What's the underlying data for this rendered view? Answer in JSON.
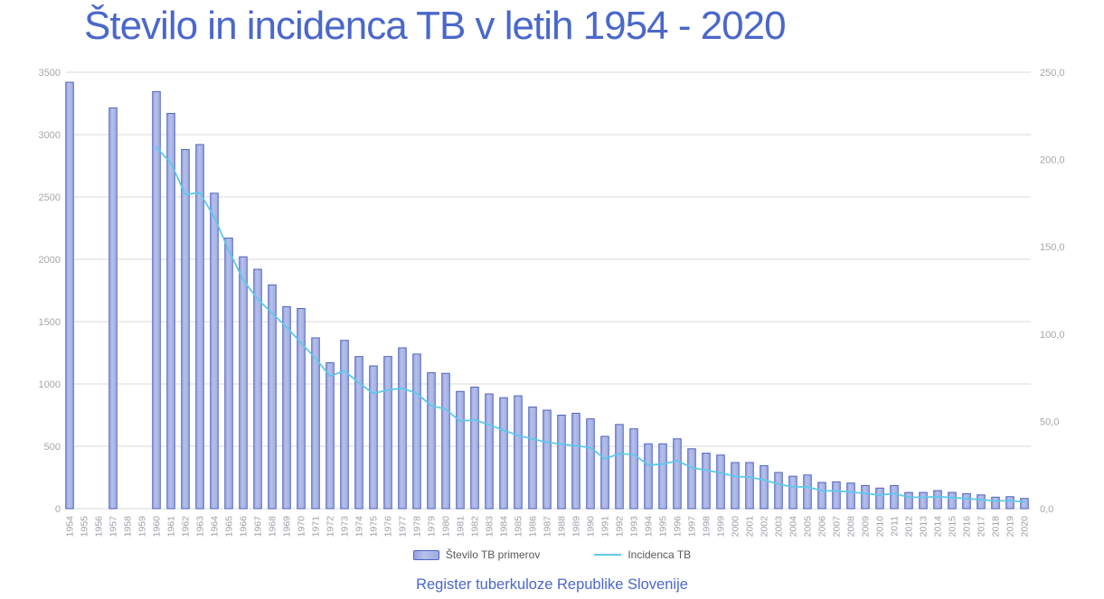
{
  "title": "Število in incidenca TB v letih 1954 - 2020",
  "caption": "Register tuberkuloze Republike Slovenije",
  "legend": {
    "bars": "Število TB primerov",
    "line": "Incidenca TB"
  },
  "colors": {
    "title": "#4A67CB",
    "caption": "#4A67CB",
    "bar_gradient": [
      "#97A4DD",
      "#B6C0EB",
      "#9FABE0"
    ],
    "bar_stroke": "#5063BE",
    "line": "#5EC9E9",
    "grid": "#D9D9D9",
    "axis_text": "#A6A6A6",
    "year_text": "#9DA1A8",
    "legend_text": "#595959"
  },
  "chart_data": {
    "type": "bar",
    "subtype": "combo-bar-line",
    "title": "Število in incidenca TB v letih 1954 - 2020",
    "xlabel": "",
    "ylabel_left": "",
    "ylabel_right": "",
    "grid": "horizontal",
    "legend_position": "bottom",
    "x": [
      1954,
      1955,
      1956,
      1957,
      1958,
      1959,
      1960,
      1961,
      1962,
      1963,
      1964,
      1965,
      1966,
      1967,
      1968,
      1969,
      1970,
      1971,
      1972,
      1973,
      1974,
      1975,
      1976,
      1977,
      1978,
      1979,
      1980,
      1981,
      1982,
      1983,
      1984,
      1985,
      1986,
      1987,
      1988,
      1989,
      1990,
      1991,
      1992,
      1993,
      1994,
      1995,
      1996,
      1997,
      1998,
      1999,
      2000,
      2001,
      2002,
      2003,
      2004,
      2005,
      2006,
      2007,
      2008,
      2009,
      2010,
      2011,
      2012,
      2013,
      2014,
      2015,
      2016,
      2017,
      2018,
      2019,
      2020
    ],
    "series": [
      {
        "name": "Število TB primerov",
        "type": "bar",
        "axis": "left",
        "values": [
          3420,
          null,
          null,
          3215,
          null,
          null,
          3345,
          3170,
          2880,
          2920,
          2530,
          2170,
          2020,
          1920,
          1795,
          1620,
          1605,
          1370,
          1170,
          1350,
          1220,
          1145,
          1220,
          1290,
          1240,
          1090,
          1085,
          940,
          975,
          920,
          890,
          905,
          815,
          790,
          750,
          765,
          720,
          580,
          675,
          640,
          520,
          520,
          560,
          480,
          445,
          430,
          370,
          370,
          345,
          290,
          260,
          270,
          210,
          215,
          205,
          185,
          165,
          185,
          130,
          130,
          145,
          130,
          120,
          110,
          92,
          96,
          82
        ]
      },
      {
        "name": "Incidenca TB",
        "type": "line",
        "axis": "right",
        "values": [
          null,
          null,
          null,
          null,
          null,
          null,
          207,
          198,
          180,
          181,
          167,
          148,
          131,
          120,
          112,
          104,
          95,
          86,
          76,
          79,
          72,
          66,
          68,
          69,
          66,
          59,
          57,
          50,
          51,
          48,
          45,
          42,
          40,
          38,
          37,
          36,
          35,
          28.5,
          31.5,
          31,
          25,
          25.5,
          27.5,
          23.5,
          22,
          20.5,
          18.5,
          18,
          16.5,
          14,
          12.5,
          12.5,
          10.2,
          10.2,
          9.5,
          8.7,
          7.8,
          8.7,
          6.6,
          6.4,
          6.9,
          6.3,
          5.8,
          5.2,
          4.4,
          4.6,
          3.9
        ]
      }
    ],
    "left_axis": {
      "min": 0,
      "max": 3500,
      "tick_step": 500,
      "tick_labels": [
        "0",
        "500",
        "1000",
        "1500",
        "2000",
        "2500",
        "3000",
        "3500"
      ]
    },
    "right_axis": {
      "min": 0,
      "max": 250,
      "tick_step": 50,
      "tick_labels": [
        "0,0",
        "50,0",
        "100,0",
        "150,0",
        "200,0",
        "250,0"
      ]
    }
  }
}
